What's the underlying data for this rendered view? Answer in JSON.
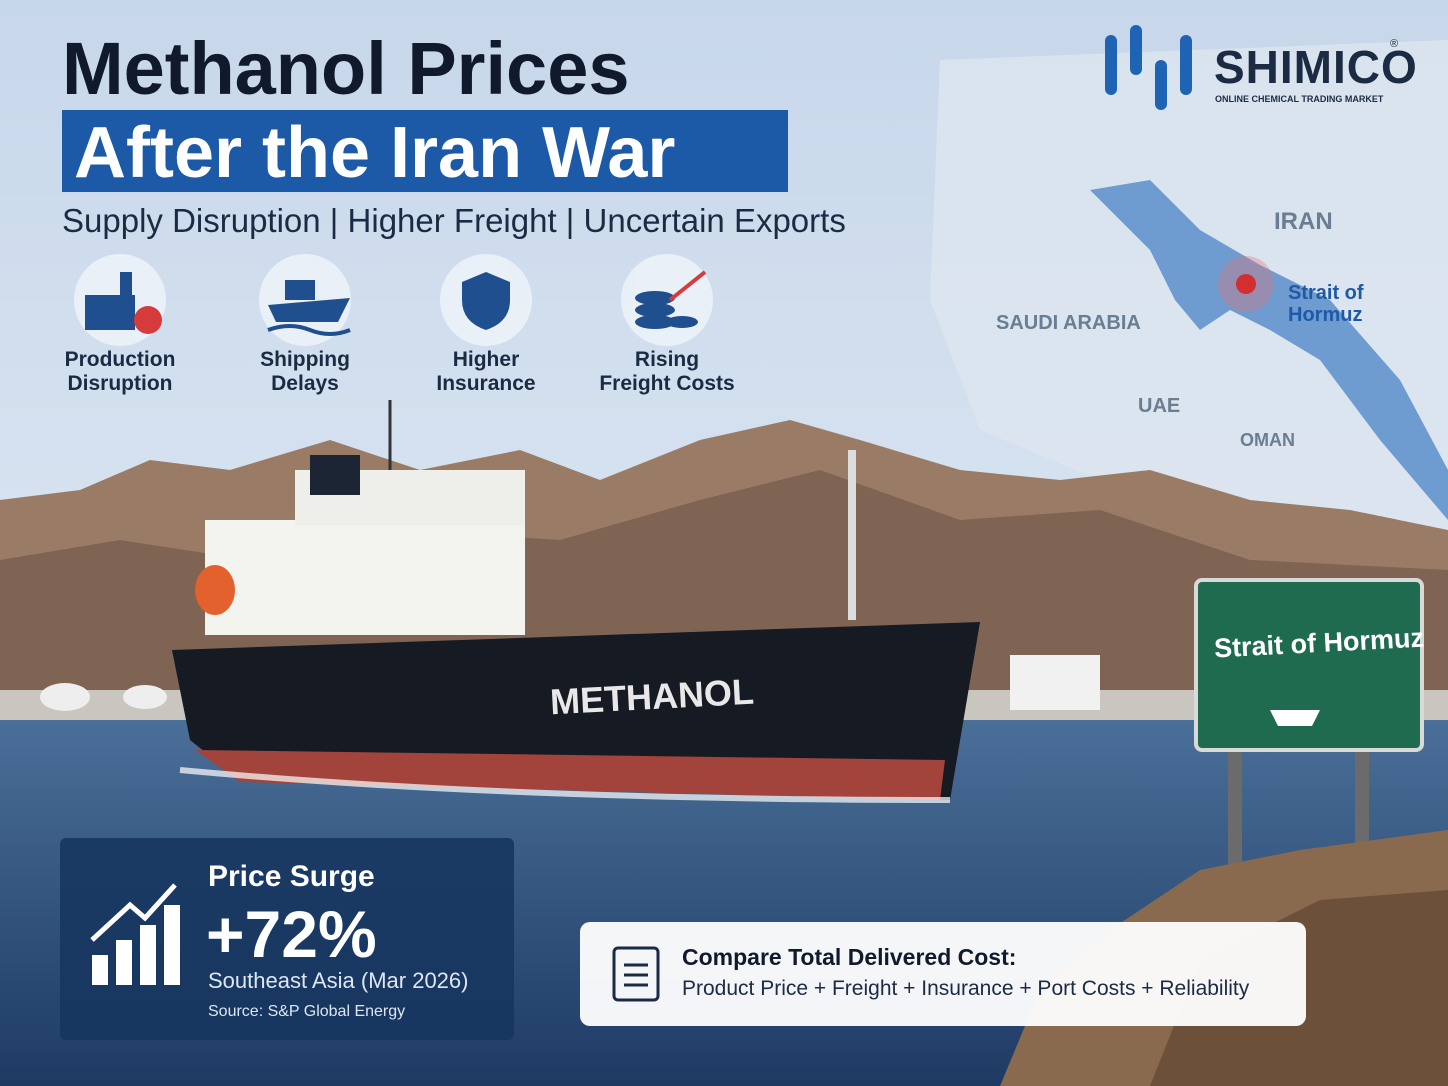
{
  "header": {
    "title_line1": "Methanol Prices",
    "title_line2": "After the Iran War",
    "subtitle": "Supply Disruption | Higher Freight | Uncertain Exports"
  },
  "logo": {
    "name": "SHIMICO",
    "mark": "®",
    "tagline": "ONLINE CHEMICAL TRADING MARKET"
  },
  "factors": [
    {
      "lines": [
        "Production",
        "Disruption"
      ]
    },
    {
      "lines": [
        "Shipping",
        "Delays"
      ]
    },
    {
      "lines": [
        "Higher",
        "Insurance"
      ]
    },
    {
      "lines": [
        "Rising",
        "Freight Costs"
      ]
    }
  ],
  "map": {
    "labels": [
      "IRAN",
      "SAUDI ARABIA",
      "UAE",
      "OMAN"
    ],
    "strait": [
      "Strait of",
      "Hormuz"
    ]
  },
  "ship": {
    "name": "METHANOL"
  },
  "sign": {
    "text": "Strait of Hormuz"
  },
  "price_box": {
    "heading": "Price Surge",
    "change": "+72%",
    "region": "Southeast Asia (Mar 2026)",
    "source": "Source: S&P Global Energy"
  },
  "compare_box": {
    "heading": "Compare Total Delivered Cost:",
    "formula": "Product Price + Freight + Insurance + Port Costs + Reliability"
  }
}
